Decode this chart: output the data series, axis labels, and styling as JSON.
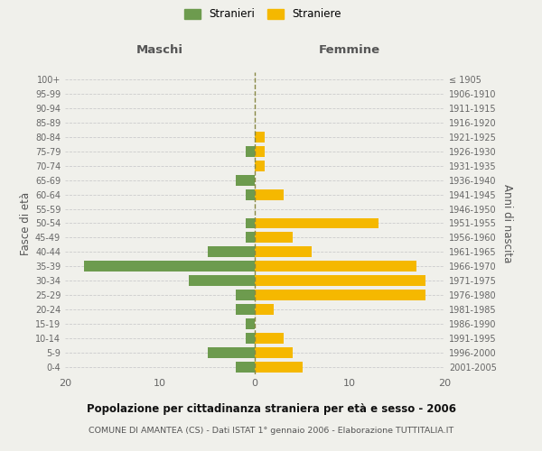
{
  "age_groups": [
    "0-4",
    "5-9",
    "10-14",
    "15-19",
    "20-24",
    "25-29",
    "30-34",
    "35-39",
    "40-44",
    "45-49",
    "50-54",
    "55-59",
    "60-64",
    "65-69",
    "70-74",
    "75-79",
    "80-84",
    "85-89",
    "90-94",
    "95-99",
    "100+"
  ],
  "birth_years": [
    "2001-2005",
    "1996-2000",
    "1991-1995",
    "1986-1990",
    "1981-1985",
    "1976-1980",
    "1971-1975",
    "1966-1970",
    "1961-1965",
    "1956-1960",
    "1951-1955",
    "1946-1950",
    "1941-1945",
    "1936-1940",
    "1931-1935",
    "1926-1930",
    "1921-1925",
    "1916-1920",
    "1911-1915",
    "1906-1910",
    "≤ 1905"
  ],
  "maschi": [
    2,
    5,
    1,
    1,
    2,
    2,
    7,
    18,
    5,
    1,
    1,
    0,
    1,
    2,
    0,
    1,
    0,
    0,
    0,
    0,
    0
  ],
  "femmine": [
    5,
    4,
    3,
    0,
    2,
    18,
    18,
    17,
    6,
    4,
    13,
    0,
    3,
    0,
    1,
    1,
    1,
    0,
    0,
    0,
    0
  ],
  "maschi_color": "#6d9b4e",
  "femmine_color": "#f5b800",
  "background_color": "#f0f0eb",
  "grid_color": "#cccccc",
  "center_line_color": "#888844",
  "title": "Popolazione per cittadinanza straniera per età e sesso - 2006",
  "subtitle": "COMUNE DI AMANTEA (CS) - Dati ISTAT 1° gennaio 2006 - Elaborazione TUTTITALIA.IT",
  "xlabel_left": "Maschi",
  "xlabel_right": "Femmine",
  "ylabel_left": "Fasce di età",
  "ylabel_right": "Anni di nascita",
  "legend_maschi": "Stranieri",
  "legend_femmine": "Straniere",
  "xlim": 20
}
